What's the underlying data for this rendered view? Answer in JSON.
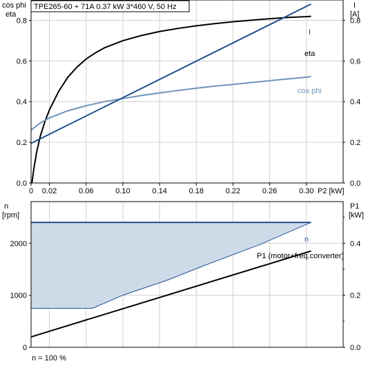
{
  "chart_data": [
    {
      "type": "line",
      "title": "TPE265-60 + 71A   0.37 kW   3*460 V, 50 Hz",
      "ylabel_left": [
        "cos phi",
        "eta"
      ],
      "ylabel_right": [
        "I",
        "[A]"
      ],
      "xlabel": "P2 [kW]",
      "xlim": [
        0,
        0.34
      ],
      "ylim_left": [
        0,
        0.9
      ],
      "ylim_right": [
        0,
        0.9
      ],
      "x_ticks": [
        "0",
        "0.02",
        "0.06",
        "0.10",
        "0.14",
        "0.18",
        "0.22",
        "0.26",
        "0.30"
      ],
      "x_tick_values": [
        0,
        0.02,
        0.06,
        0.1,
        0.14,
        0.18,
        0.22,
        0.26,
        0.3
      ],
      "y_ticks_left": [
        "0.0",
        "0.2",
        "0.4",
        "0.6",
        "0.8"
      ],
      "y_ticks_right": [
        "0.0",
        "0.2",
        "0.4",
        "0.6",
        "0.8"
      ],
      "y_tick_values": [
        0,
        0.2,
        0.4,
        0.6,
        0.8
      ],
      "grid": true,
      "series": [
        {
          "name": "eta",
          "color": "#000000",
          "x": [
            0.001,
            0.003,
            0.006,
            0.01,
            0.015,
            0.02,
            0.03,
            0.04,
            0.05,
            0.06,
            0.07,
            0.08,
            0.1,
            0.12,
            0.14,
            0.16,
            0.18,
            0.2,
            0.22,
            0.24,
            0.26,
            0.28,
            0.3,
            0.305
          ],
          "y": [
            0.0,
            0.07,
            0.15,
            0.23,
            0.3,
            0.36,
            0.45,
            0.52,
            0.57,
            0.61,
            0.64,
            0.665,
            0.7,
            0.725,
            0.745,
            0.76,
            0.773,
            0.784,
            0.793,
            0.801,
            0.808,
            0.814,
            0.818,
            0.82
          ]
        },
        {
          "name": "cos phi",
          "color": "#6e93b8",
          "x": [
            0,
            0.01,
            0.02,
            0.04,
            0.06,
            0.08,
            0.1,
            0.12,
            0.14,
            0.16,
            0.18,
            0.2,
            0.22,
            0.24,
            0.26,
            0.28,
            0.3,
            0.305
          ],
          "y": [
            0.26,
            0.295,
            0.32,
            0.355,
            0.38,
            0.4,
            0.415,
            0.43,
            0.443,
            0.455,
            0.466,
            0.476,
            0.485,
            0.494,
            0.503,
            0.512,
            0.52,
            0.524
          ]
        },
        {
          "name": "I",
          "color": "#1f4e8c",
          "x": [
            0,
            0.305
          ],
          "y": [
            0.195,
            0.88
          ]
        }
      ]
    },
    {
      "type": "area",
      "ylabel_left": [
        "n",
        "[rpm]"
      ],
      "ylabel_right": [
        "P1",
        "[kW]"
      ],
      "xlim": [
        0,
        0.34
      ],
      "ylim_left": [
        0,
        2800
      ],
      "ylim_right": [
        0,
        0.56
      ],
      "y_ticks_left": [
        "0",
        "1000",
        "2000"
      ],
      "y_tick_values_left": [
        0,
        1000,
        2000
      ],
      "y_ticks_right": [
        "0.0",
        "0.2",
        "0.4"
      ],
      "y_tick_values_right": [
        0,
        0.2,
        0.4
      ],
      "grid": true,
      "note": "n = 100 %",
      "fill_color": "#cddbe8",
      "series": [
        {
          "name": "n",
          "color": "#1f4e8c",
          "axis": "left",
          "x": [
            0,
            0.305
          ],
          "y": [
            2400,
            2400
          ]
        },
        {
          "name": "",
          "color": "#1f4e8c",
          "axis": "left",
          "x": [
            0,
            0.067,
            0.1,
            0.15,
            0.19,
            0.25,
            0.305
          ],
          "y": [
            750,
            750,
            1000,
            1300,
            1580,
            1980,
            2400
          ]
        },
        {
          "name": "P1 (motor+freq.converter)",
          "color": "#000000",
          "axis": "right",
          "x": [
            0,
            0.305
          ],
          "y": [
            0.04,
            0.37
          ]
        }
      ]
    }
  ]
}
